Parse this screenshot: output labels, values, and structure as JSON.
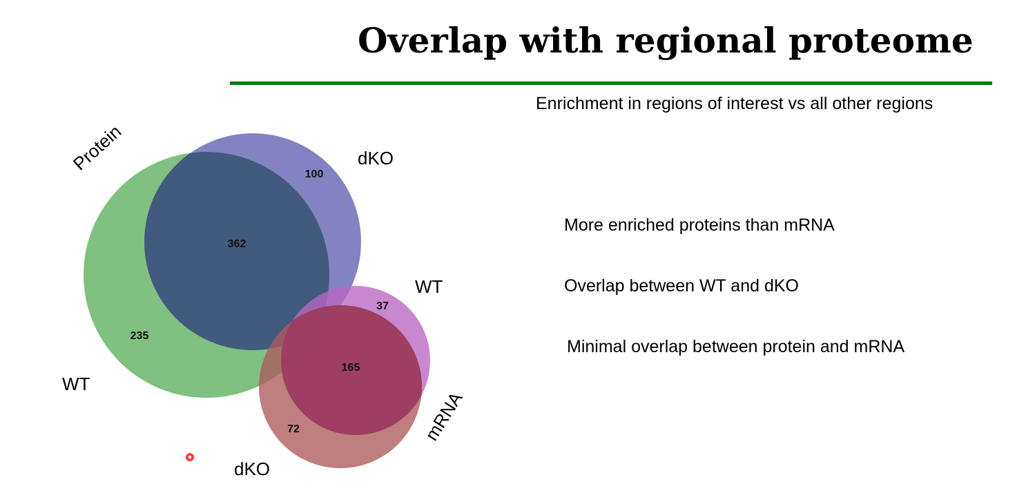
{
  "slide": {
    "title": "Overlap with regional proteome",
    "subtitle": "Enrichment in regions of interest vs all other regions",
    "bullets": [
      "More enriched proteins than mRNA",
      "Overlap between WT and dKO",
      "Minimal overlap between protein and mRNA"
    ]
  },
  "venn": {
    "group_labels": {
      "protein": "Protein",
      "mrna": "mRNA"
    },
    "set_labels": {
      "protein_wt": "WT",
      "protein_dko": "dKO",
      "mrna_wt": "WT",
      "mrna_dko": "dKO"
    },
    "counts": {
      "protein_wt_only": "235",
      "protein_dko_only": "100",
      "protein_wt_dko": "362",
      "mrna_wt_only": "37",
      "mrna_dko_only": "72",
      "mrna_wt_dko": "165"
    },
    "colors": {
      "protein_wt": "#5cae5c",
      "protein_dko": "#5a5aae",
      "protein_overlap": "#3f5a7c",
      "mrna_wt": "#b865c0",
      "mrna_dko": "#ad5a5c",
      "mrna_overlap": "#9a3a60",
      "accent_rule": "#0a7a0a"
    }
  }
}
